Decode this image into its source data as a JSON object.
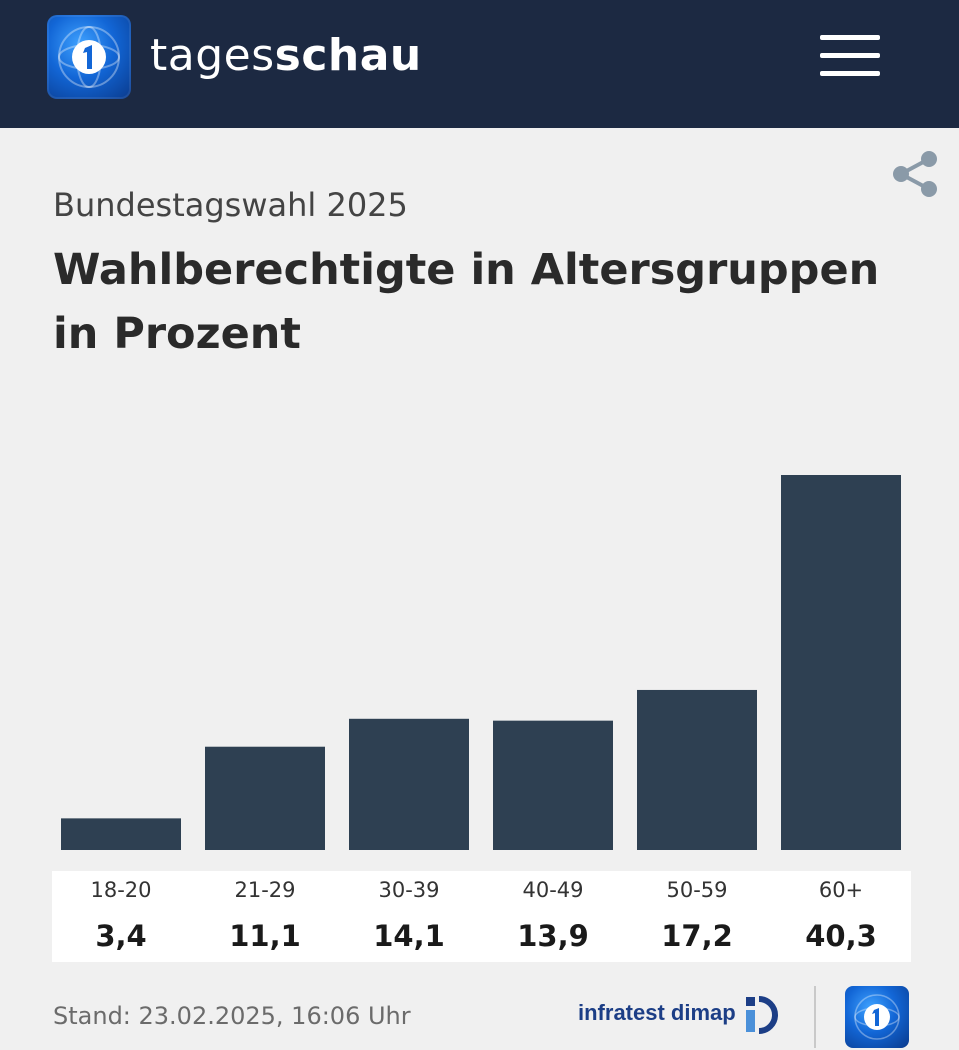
{
  "header": {
    "brand_light": "tages",
    "brand_bold": "schau",
    "logo_icon": "ard-one-logo-icon",
    "menu_icon": "hamburger-menu-icon",
    "background_color": "#1c2942"
  },
  "share_icon": "share-icon",
  "subtitle": "Bundestagswahl 2025",
  "title": "Wahlberechtigte in Altersgruppen in Prozent",
  "chart_data": {
    "type": "bar",
    "categories": [
      "18-20",
      "21-29",
      "30-39",
      "40-49",
      "50-59",
      "60+"
    ],
    "values": [
      3.4,
      11.1,
      14.1,
      13.9,
      17.2,
      40.3
    ],
    "value_labels": [
      "3,4",
      "11,1",
      "14,1",
      "13,9",
      "17,2",
      "40,3"
    ],
    "title": "Wahlberechtigte in Altersgruppen in Prozent",
    "ylim": [
      0,
      40.3
    ],
    "grid": false,
    "bar_color": "#2e4052"
  },
  "footer": {
    "stand": "Stand:  23.02.2025, 16:06 Uhr",
    "source": "infratest dimap",
    "source_logo_icon": "infratest-dimap-logo-icon",
    "footer_logo_icon": "ard-one-logo-icon"
  }
}
